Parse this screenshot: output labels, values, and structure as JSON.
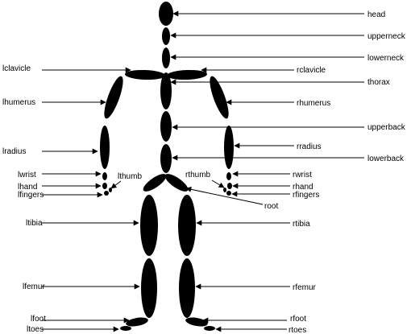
{
  "labels": {
    "head": "head",
    "upperneck": "upperneck",
    "lowerneck": "lowerneck",
    "lclavicle": "lclavicle",
    "rclavicle": "rclavicle",
    "thorax": "thorax",
    "lhumerus": "lhumerus",
    "rhumerus": "rhumerus",
    "upperback": "upperback",
    "lradius": "lradius",
    "rradius": "rradius",
    "lowerback": "lowerback",
    "lwrist": "lwrist",
    "lthumb": "lthumb",
    "rthumb": "rthumb",
    "rwrist": "rwrist",
    "lhand": "lhand",
    "rhand": "rhand",
    "lfingers": "lfingers",
    "rfingers": "rfingers",
    "root": "root",
    "ltibia": "ltibia",
    "rtibia": "rtibia",
    "lfemur": "lfemur",
    "rfemur": "rfemur",
    "lfoot": "lfoot",
    "rfoot": "rfoot",
    "ltoes": "ltoes",
    "rtoes": "rtoes"
  },
  "colors": {
    "segment": "#000000",
    "background": "#ffffff",
    "line": "#000000"
  }
}
